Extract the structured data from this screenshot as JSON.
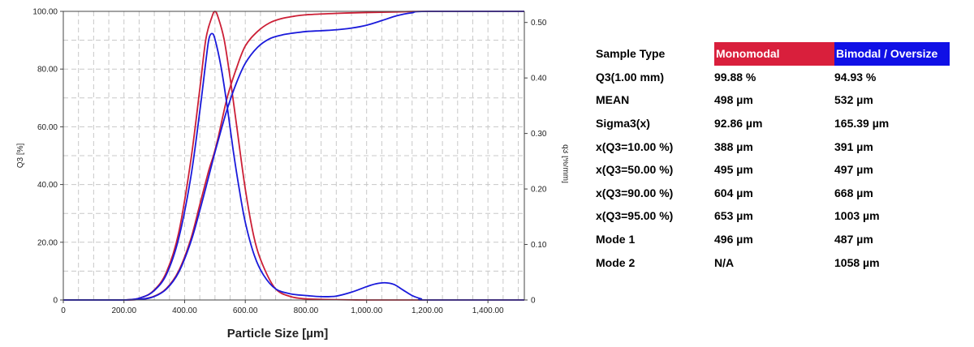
{
  "chart_data": {
    "type": "line",
    "xlabel": "Particle Size [µm]",
    "ylabel": "Q3 [%]",
    "y2label": "q3 [%/mm]",
    "xlim": [
      0,
      1520
    ],
    "ylim": [
      0,
      100
    ],
    "y2lim": [
      0,
      0.52
    ],
    "x_ticks": [
      0,
      200,
      400,
      600,
      800,
      1000,
      1200,
      1400
    ],
    "x_tick_labels": [
      "0",
      "200.00",
      "400.00",
      "600.00",
      "800.00",
      "1,000.00",
      "1,200.00",
      "1,400.00"
    ],
    "y_ticks": [
      0,
      20,
      40,
      60,
      80,
      100
    ],
    "y_tick_labels": [
      "0",
      "20.00",
      "40.00",
      "60.00",
      "80.00",
      "100.00"
    ],
    "y2_ticks": [
      0,
      0.1,
      0.2,
      0.3,
      0.4,
      0.5
    ],
    "y2_tick_labels": [
      "0",
      "0.10",
      "0.20",
      "0.30",
      "0.40",
      "0.50"
    ],
    "grid": true,
    "series": [
      {
        "color": "#cc1f36",
        "axis": "y2",
        "x": [
          0,
          200,
          260,
          300,
          340,
          380,
          420,
          450,
          470,
          490,
          500,
          510,
          530,
          550,
          570,
          600,
          630,
          660,
          700,
          750,
          800,
          850,
          900,
          950,
          1000,
          1100,
          1200,
          1520
        ],
        "values": [
          0,
          0.0,
          0.005,
          0.018,
          0.05,
          0.12,
          0.25,
          0.38,
          0.47,
          0.51,
          0.52,
          0.51,
          0.47,
          0.4,
          0.32,
          0.2,
          0.11,
          0.06,
          0.02,
          0.006,
          0.002,
          0.001,
          0.0005,
          0.0002,
          0.0,
          0.0,
          0.0,
          0.0
        ]
      },
      {
        "color": "#cc1f36",
        "axis": "y",
        "x": [
          0,
          200,
          260,
          300,
          340,
          380,
          420,
          450,
          480,
          495,
          510,
          540,
          570,
          600,
          640,
          680,
          720,
          760,
          800,
          900,
          1000,
          1100,
          1200,
          1520
        ],
        "values": [
          0,
          0,
          0.3,
          1.3,
          4,
          10,
          21,
          33,
          45,
          50,
          56,
          70,
          80,
          88,
          93,
          96,
          97.5,
          98.3,
          98.8,
          99.3,
          99.6,
          99.8,
          100,
          100
        ]
      },
      {
        "color": "#1a1adb",
        "axis": "y2",
        "x": [
          0,
          200,
          260,
          300,
          340,
          380,
          420,
          450,
          470,
          480,
          490,
          500,
          520,
          540,
          560,
          580,
          600,
          630,
          660,
          700,
          750,
          800,
          850,
          900,
          950,
          1000,
          1030,
          1060,
          1090,
          1120,
          1150,
          1180,
          1200,
          1520
        ],
        "values": [
          0,
          0.0,
          0.005,
          0.017,
          0.046,
          0.11,
          0.22,
          0.34,
          0.43,
          0.47,
          0.48,
          0.47,
          0.42,
          0.35,
          0.27,
          0.2,
          0.14,
          0.08,
          0.045,
          0.02,
          0.011,
          0.008,
          0.006,
          0.007,
          0.014,
          0.024,
          0.029,
          0.031,
          0.028,
          0.018,
          0.008,
          0.002,
          0.0,
          0.0
        ]
      },
      {
        "color": "#1a1adb",
        "axis": "y",
        "x": [
          0,
          200,
          260,
          300,
          340,
          380,
          420,
          450,
          480,
          497,
          510,
          540,
          570,
          600,
          640,
          680,
          720,
          760,
          800,
          850,
          900,
          950,
          1000,
          1050,
          1100,
          1150,
          1200,
          1520
        ],
        "values": [
          0,
          0,
          0.3,
          1.2,
          3.8,
          9.5,
          20,
          31,
          43,
          50,
          55,
          66,
          75,
          82,
          87.5,
          90.5,
          91.8,
          92.5,
          93,
          93.3,
          93.6,
          94.2,
          95.2,
          96.8,
          98.5,
          99.5,
          100,
          100
        ]
      }
    ]
  },
  "stats": {
    "header": [
      "Sample Type",
      "Monomodal",
      "Bimodal / Oversize"
    ],
    "header_colors": [
      "#ffffff",
      "#d91f3c",
      "#1010e6"
    ],
    "rows": [
      [
        "Q3(1.00 mm)",
        "99.88 %",
        "94.93 %"
      ],
      [
        "MEAN",
        "498 µm",
        "532 µm"
      ],
      [
        "Sigma3(x)",
        "92.86 µm",
        "165.39 µm"
      ],
      [
        "x(Q3=10.00 %)",
        "388 µm",
        "391 µm"
      ],
      [
        "x(Q3=50.00 %)",
        "495 µm",
        "497 µm"
      ],
      [
        "x(Q3=90.00 %)",
        "604 µm",
        "668 µm"
      ],
      [
        "x(Q3=95.00 %)",
        "653 µm",
        "1003 µm"
      ],
      [
        "Mode 1",
        "496 µm",
        "487 µm"
      ],
      [
        "Mode 2",
        "N/A",
        "1058 µm"
      ]
    ]
  }
}
